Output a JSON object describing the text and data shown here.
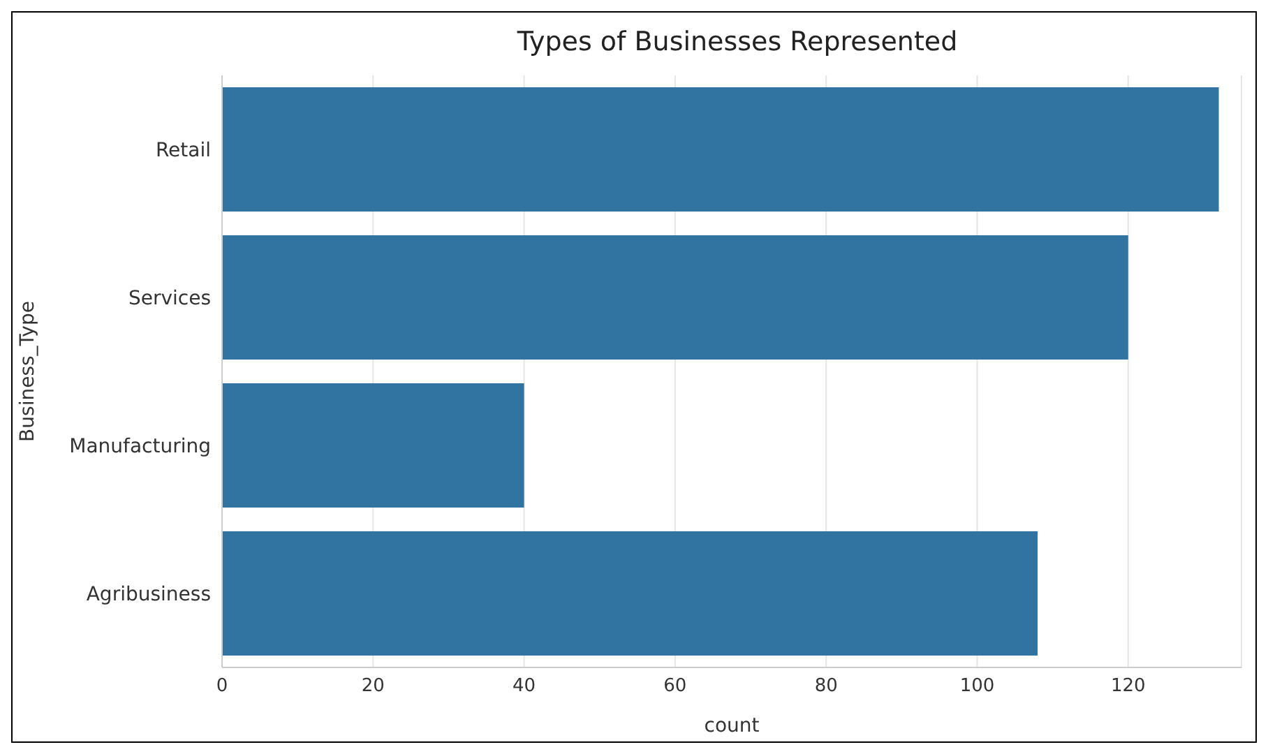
{
  "chart_data": {
    "type": "bar",
    "orientation": "horizontal",
    "title": "Types of Businesses Represented",
    "xlabel": "count",
    "ylabel": "Business_Type",
    "categories": [
      "Retail",
      "Services",
      "Manufacturing",
      "Agribusiness"
    ],
    "values": [
      132,
      120,
      40,
      108
    ],
    "color": "#3274a1",
    "xlim": [
      0,
      135
    ],
    "xticks": [
      0,
      20,
      40,
      60,
      80,
      100,
      120
    ],
    "grid": "x"
  }
}
